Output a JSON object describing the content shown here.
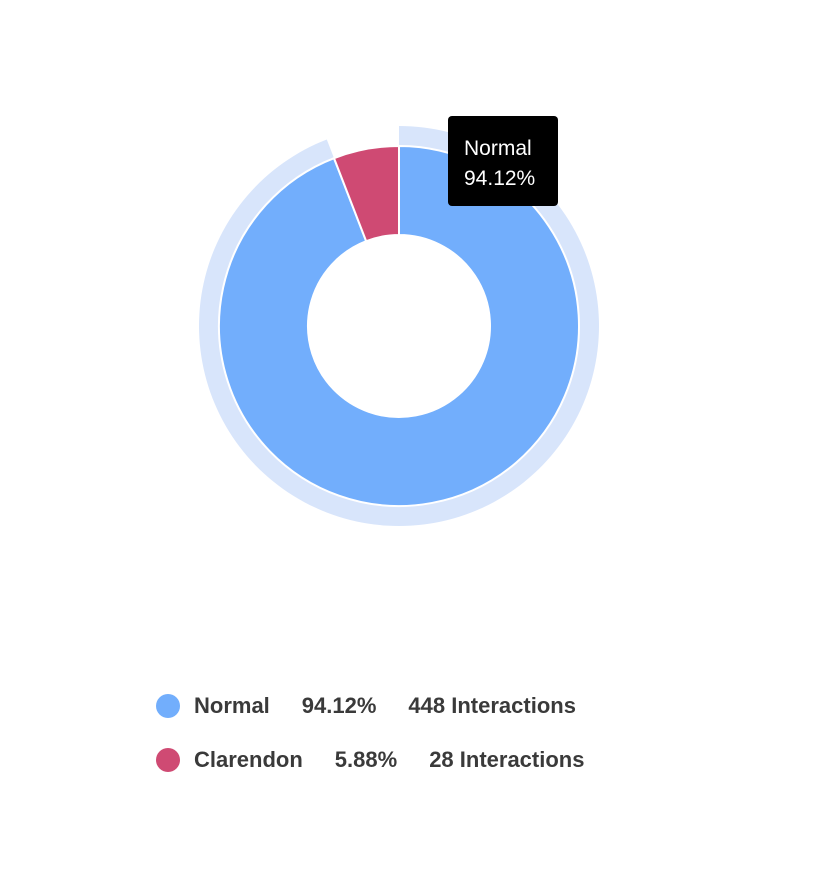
{
  "chart_data": {
    "type": "pie",
    "variant": "donut",
    "series": [
      {
        "name": "Normal",
        "percent": 94.12,
        "percent_label": "94.12%",
        "interactions_label": "448 Interactions",
        "value": 448,
        "color": "#72aefc"
      },
      {
        "name": "Clarendon",
        "percent": 5.88,
        "percent_label": "5.88%",
        "interactions_label": "28 Interactions",
        "value": 28,
        "color": "#cf4a73"
      }
    ],
    "highlighted": "Normal",
    "highlight_color": "#d8e5fb",
    "legend_position": "bottom"
  },
  "tooltip": {
    "label": "Normal",
    "value": "94.12%"
  }
}
